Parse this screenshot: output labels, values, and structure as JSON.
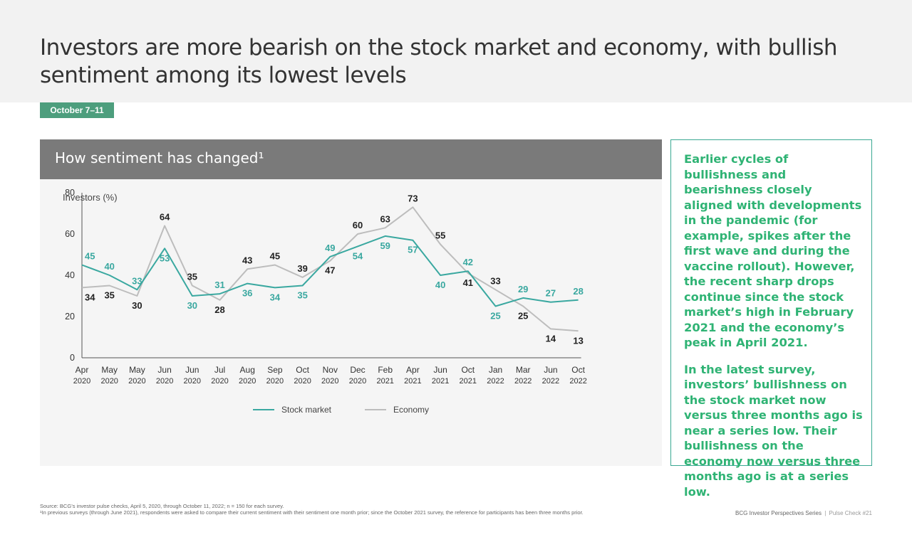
{
  "title": "Investors are more bearish on the stock market and economy, with bullish sentiment among its lowest levels",
  "date_badge": "October 7–11",
  "panel_title": "How sentiment has changed¹",
  "y_caption": "Investors (%)",
  "side_text": [
    "Earlier cycles of bullishness and bearishness closely aligned with developments in the pandemic (for example, spikes after the first wave and during the vaccine rollout). However, the recent sharp drops continue since the stock market’s high in February 2021 and the economy’s peak in April 2021.",
    "In the latest survey, investors’ bullishness on the stock market now versus three months ago is near a series low. Their bullishness on the economy now versus three months ago is at a series low."
  ],
  "footer": {
    "source": "Source: BCG’s investor pulse checks, April 5, 2020, through October 11, 2022; n = 150 for each survey.",
    "note": "¹In previous surveys (through June 2021), respondents were asked to compare their current sentiment with their sentiment one month prior; since the October 2021 survey, the reference for participants has been three months prior.",
    "series": "BCG Investor Perspectives Series",
    "separator": "|",
    "pulse_check": "Pulse Check #21"
  },
  "colors": {
    "stock": "#3aa8a0",
    "economy": "#bdbdbd",
    "side_text": "#2fb374",
    "badge": "#4d9e7d",
    "panel_head": "#7a7a7a"
  },
  "chart_data": {
    "type": "line",
    "categories": [
      [
        "Apr",
        "2020"
      ],
      [
        "May",
        "2020"
      ],
      [
        "May",
        "2020"
      ],
      [
        "Jun",
        "2020"
      ],
      [
        "Jun",
        "2020"
      ],
      [
        "Jul",
        "2020"
      ],
      [
        "Aug",
        "2020"
      ],
      [
        "Sep",
        "2020"
      ],
      [
        "Oct",
        "2020"
      ],
      [
        "Nov",
        "2020"
      ],
      [
        "Dec",
        "2020"
      ],
      [
        "Feb",
        "2021"
      ],
      [
        "Apr",
        "2021"
      ],
      [
        "Jun",
        "2021"
      ],
      [
        "Oct",
        "2021"
      ],
      [
        "Jan",
        "2022"
      ],
      [
        "Mar",
        "2022"
      ],
      [
        "Jun",
        "2022"
      ],
      [
        "Oct",
        "2022"
      ]
    ],
    "series": [
      {
        "name": "Stock market",
        "values": [
          45,
          40,
          33,
          53,
          30,
          31,
          36,
          34,
          35,
          49,
          54,
          59,
          57,
          40,
          42,
          25,
          29,
          27,
          28
        ]
      },
      {
        "name": "Economy",
        "values": [
          34,
          35,
          30,
          64,
          35,
          28,
          43,
          45,
          39,
          47,
          60,
          63,
          73,
          55,
          41,
          33,
          25,
          14,
          13
        ]
      }
    ],
    "label_pos": {
      "Stock market": [
        "above",
        "above",
        "above",
        "below",
        "below",
        "above",
        "below",
        "below",
        "below",
        "above",
        "below",
        "below",
        "below",
        "below",
        "above",
        "below",
        "above",
        "above",
        "above"
      ],
      "Economy": [
        "below",
        "below",
        "below",
        "above",
        "above",
        "below",
        "above",
        "above",
        "above",
        "below",
        "above",
        "above",
        "above",
        "above",
        "below",
        "above",
        "below",
        "below",
        "below"
      ]
    },
    "ylabel": "Investors (%)",
    "ylim": [
      0,
      80
    ],
    "yticks": [
      0,
      20,
      40,
      60,
      80
    ],
    "legend": "bottom-center",
    "grid": false
  }
}
